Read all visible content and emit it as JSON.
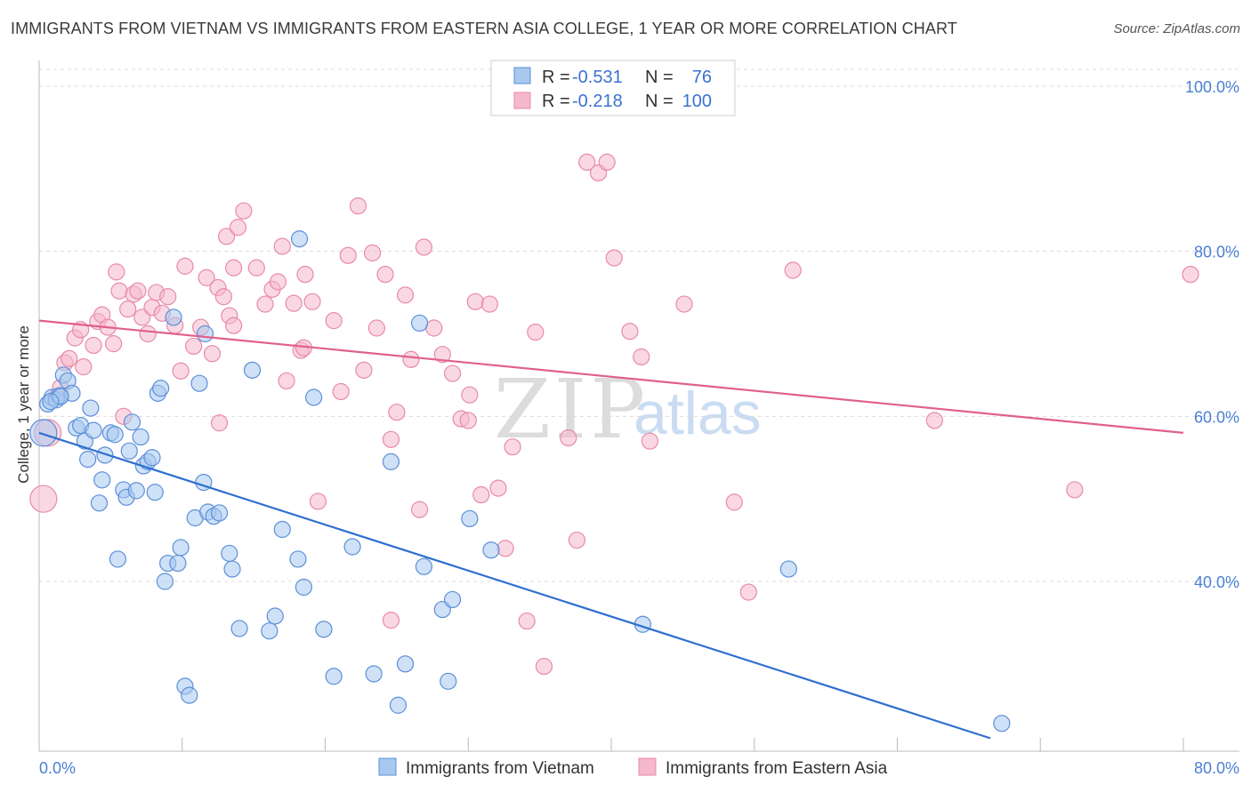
{
  "header": {
    "title": "IMMIGRANTS FROM VIETNAM VS IMMIGRANTS FROM EASTERN ASIA COLLEGE, 1 YEAR OR MORE CORRELATION CHART",
    "source": "Source: ZipAtlas.com"
  },
  "watermark": {
    "zip": "ZIP",
    "atlas": "atlas"
  },
  "colors": {
    "blue_fill": "#a8c8f0",
    "blue_stroke": "#5b8fd8",
    "blue_line": "#2f6fd0",
    "pink_fill": "#f5b8cc",
    "pink_stroke": "#e88aa8",
    "pink_line": "#e0608a",
    "axis_text": "#4a7fd4",
    "grid": "#dcdcdc"
  },
  "stats": {
    "blue": {
      "r_label": "R =",
      "r_value": "-0.531",
      "n_label": "N =",
      "n_value": "76"
    },
    "pink": {
      "r_label": "R =",
      "r_value": "-0.218",
      "n_label": "N =",
      "n_value": "100"
    }
  },
  "chart_data": {
    "type": "scatter",
    "xlabel": "",
    "ylabel": "College, 1 year or more",
    "xlim": [
      0,
      80
    ],
    "ylim": [
      20,
      105
    ],
    "x_tick_labels": {
      "0": "0.0%",
      "80": "80.0%"
    },
    "y_tick_labels": {
      "40": "40.0%",
      "60": "60.0%",
      "80": "80.0%",
      "100": "100.0%"
    },
    "legend_position": "bottom",
    "series": [
      {
        "name": "Immigrants from Vietnam",
        "color": "#a8c8f0",
        "trend": {
          "x": [
            0,
            66.5
          ],
          "y": [
            58.0,
            21.0
          ]
        },
        "points": [
          [
            0.3,
            58.0
          ],
          [
            0.6,
            61.5
          ],
          [
            0.9,
            62.3
          ],
          [
            1.2,
            62.0
          ],
          [
            1.4,
            62.5
          ],
          [
            1.7,
            65.0
          ],
          [
            2.0,
            64.3
          ],
          [
            2.3,
            62.8
          ],
          [
            2.6,
            58.6
          ],
          [
            2.9,
            58.9
          ],
          [
            3.2,
            57.0
          ],
          [
            3.4,
            54.8
          ],
          [
            3.6,
            61.0
          ],
          [
            3.8,
            58.3
          ],
          [
            4.2,
            49.5
          ],
          [
            4.4,
            52.3
          ],
          [
            4.6,
            55.3
          ],
          [
            5.0,
            58.0
          ],
          [
            5.3,
            57.8
          ],
          [
            5.5,
            42.7
          ],
          [
            5.9,
            51.1
          ],
          [
            6.1,
            50.2
          ],
          [
            6.3,
            55.8
          ],
          [
            6.5,
            59.3
          ],
          [
            6.8,
            51.0
          ],
          [
            7.1,
            57.5
          ],
          [
            7.3,
            54.0
          ],
          [
            7.6,
            54.5
          ],
          [
            7.9,
            55.0
          ],
          [
            8.1,
            50.8
          ],
          [
            8.3,
            62.8
          ],
          [
            8.5,
            63.4
          ],
          [
            8.8,
            40.0
          ],
          [
            9.0,
            42.2
          ],
          [
            9.4,
            72.0
          ],
          [
            9.7,
            42.2
          ],
          [
            9.9,
            44.1
          ],
          [
            10.2,
            27.3
          ],
          [
            10.5,
            26.2
          ],
          [
            10.9,
            47.7
          ],
          [
            11.2,
            64.0
          ],
          [
            11.5,
            52.0
          ],
          [
            11.8,
            48.4
          ],
          [
            12.2,
            47.9
          ],
          [
            12.6,
            48.3
          ],
          [
            11.6,
            70.0
          ],
          [
            13.3,
            43.4
          ],
          [
            13.5,
            41.5
          ],
          [
            14.0,
            34.3
          ],
          [
            14.9,
            65.6
          ],
          [
            16.1,
            34.0
          ],
          [
            16.5,
            35.8
          ],
          [
            17.0,
            46.3
          ],
          [
            18.1,
            42.7
          ],
          [
            18.5,
            39.3
          ],
          [
            18.2,
            81.5
          ],
          [
            19.2,
            62.3
          ],
          [
            19.9,
            34.2
          ],
          [
            20.6,
            28.5
          ],
          [
            21.9,
            44.2
          ],
          [
            23.4,
            28.8
          ],
          [
            24.6,
            54.5
          ],
          [
            25.1,
            25.0
          ],
          [
            25.6,
            30.0
          ],
          [
            26.6,
            71.3
          ],
          [
            26.9,
            41.8
          ],
          [
            28.6,
            27.9
          ],
          [
            28.2,
            36.6
          ],
          [
            28.9,
            37.8
          ],
          [
            30.1,
            47.6
          ],
          [
            31.6,
            43.8
          ],
          [
            42.2,
            34.8
          ],
          [
            52.4,
            41.5
          ],
          [
            67.3,
            22.8
          ],
          [
            1.5,
            62.4
          ],
          [
            0.8,
            61.8
          ]
        ]
      },
      {
        "name": "Immigrants from Eastern Asia",
        "color": "#f5b8cc",
        "trend": {
          "x": [
            0,
            80
          ],
          "y": [
            71.6,
            58.0
          ]
        },
        "points": [
          [
            0.3,
            50.0
          ],
          [
            0.6,
            58.0
          ],
          [
            1.2,
            62.3
          ],
          [
            1.5,
            63.5
          ],
          [
            1.8,
            66.5
          ],
          [
            2.1,
            67.0
          ],
          [
            2.5,
            69.5
          ],
          [
            2.9,
            70.5
          ],
          [
            3.1,
            66.0
          ],
          [
            3.8,
            68.6
          ],
          [
            4.1,
            71.5
          ],
          [
            4.4,
            72.3
          ],
          [
            4.8,
            70.8
          ],
          [
            5.2,
            68.8
          ],
          [
            5.4,
            77.5
          ],
          [
            5.6,
            75.2
          ],
          [
            5.9,
            60.0
          ],
          [
            6.2,
            73.0
          ],
          [
            6.6,
            74.8
          ],
          [
            6.9,
            75.2
          ],
          [
            7.2,
            72.0
          ],
          [
            7.6,
            70.0
          ],
          [
            7.9,
            73.2
          ],
          [
            8.2,
            75.0
          ],
          [
            8.6,
            72.5
          ],
          [
            9.0,
            74.5
          ],
          [
            9.5,
            71.0
          ],
          [
            9.9,
            65.5
          ],
          [
            10.2,
            78.2
          ],
          [
            10.8,
            68.5
          ],
          [
            11.3,
            70.8
          ],
          [
            11.7,
            76.8
          ],
          [
            12.1,
            67.6
          ],
          [
            12.5,
            75.6
          ],
          [
            12.9,
            74.5
          ],
          [
            13.3,
            72.2
          ],
          [
            13.6,
            71.0
          ],
          [
            13.1,
            81.8
          ],
          [
            13.9,
            82.9
          ],
          [
            14.3,
            84.9
          ],
          [
            15.2,
            78.0
          ],
          [
            15.8,
            73.6
          ],
          [
            16.3,
            75.4
          ],
          [
            16.7,
            76.3
          ],
          [
            17.0,
            80.6
          ],
          [
            17.3,
            64.3
          ],
          [
            17.8,
            73.7
          ],
          [
            18.3,
            68.0
          ],
          [
            18.6,
            77.2
          ],
          [
            19.1,
            73.9
          ],
          [
            19.5,
            49.7
          ],
          [
            20.6,
            71.6
          ],
          [
            21.1,
            63.0
          ],
          [
            21.6,
            79.5
          ],
          [
            22.3,
            85.5
          ],
          [
            22.7,
            65.6
          ],
          [
            23.3,
            79.8
          ],
          [
            23.6,
            70.7
          ],
          [
            24.2,
            77.2
          ],
          [
            24.6,
            57.2
          ],
          [
            25.0,
            60.5
          ],
          [
            25.6,
            74.7
          ],
          [
            26.0,
            66.9
          ],
          [
            26.6,
            48.7
          ],
          [
            26.9,
            80.5
          ],
          [
            27.6,
            70.7
          ],
          [
            28.2,
            67.5
          ],
          [
            28.9,
            65.2
          ],
          [
            29.5,
            59.7
          ],
          [
            30.1,
            62.6
          ],
          [
            30.5,
            73.9
          ],
          [
            30.9,
            50.5
          ],
          [
            31.5,
            73.6
          ],
          [
            32.1,
            51.3
          ],
          [
            32.6,
            44.0
          ],
          [
            33.1,
            56.3
          ],
          [
            34.1,
            35.2
          ],
          [
            34.7,
            70.2
          ],
          [
            35.3,
            29.7
          ],
          [
            37.0,
            57.4
          ],
          [
            37.6,
            45.0
          ],
          [
            38.3,
            90.8
          ],
          [
            39.1,
            89.5
          ],
          [
            39.7,
            90.8
          ],
          [
            40.2,
            79.2
          ],
          [
            41.3,
            70.3
          ],
          [
            42.1,
            67.2
          ],
          [
            42.7,
            57.0
          ],
          [
            45.1,
            73.6
          ],
          [
            48.6,
            49.6
          ],
          [
            49.6,
            38.7
          ],
          [
            52.7,
            77.7
          ],
          [
            62.6,
            59.5
          ],
          [
            72.4,
            51.1
          ],
          [
            80.5,
            77.2
          ],
          [
            24.6,
            35.3
          ],
          [
            12.6,
            59.2
          ],
          [
            13.6,
            78.0
          ],
          [
            18.5,
            68.3
          ],
          [
            30.0,
            59.5
          ]
        ]
      }
    ]
  },
  "legend": {
    "blue_label": "Immigrants from Vietnam",
    "pink_label": "Immigrants from Eastern Asia"
  }
}
